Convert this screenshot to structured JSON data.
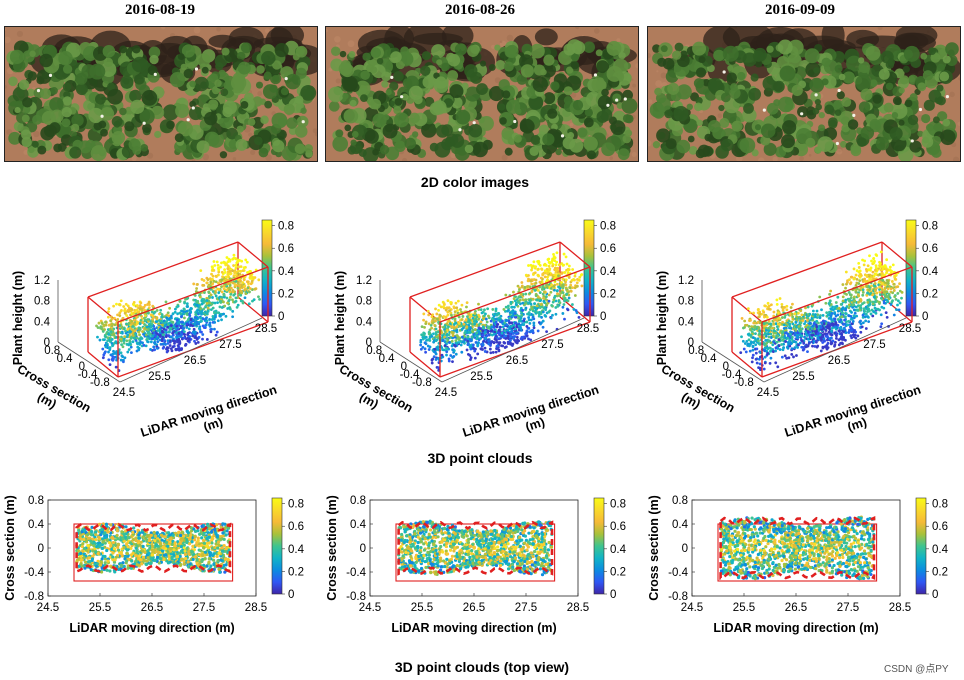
{
  "dates": [
    "2016-08-19",
    "2016-08-26",
    "2016-09-09"
  ],
  "row_titles": {
    "color": "2D color images",
    "clouds3d": "3D point clouds",
    "topview": "3D point clouds (top view)"
  },
  "axes3d": {
    "zlabel": "Plant height (m)",
    "ylabel": "Cross section\n(m)",
    "xlabel": "LiDAR moving direction\n(m)",
    "z_ticks": [
      "1.2",
      "0.8",
      "0.4",
      "0"
    ],
    "y_ticks": [
      "0.8",
      "0.4",
      "0",
      "-0.4",
      "-0.8"
    ],
    "x_ticks": [
      "24.5",
      "25.5",
      "26.5",
      "27.5",
      "28.5"
    ]
  },
  "axes_top": {
    "ylabel": "Cross section (m)",
    "xlabel": "LiDAR moving direction (m)",
    "y_ticks": [
      "0.8",
      "0.4",
      "0",
      "-0.4",
      "-0.8"
    ],
    "x_ticks": [
      "24.5",
      "25.5",
      "26.5",
      "27.5",
      "28.5"
    ]
  },
  "colorbar": {
    "ticks": [
      "0.8",
      "0.6",
      "0.4",
      "0.2",
      "0"
    ],
    "range": [
      0,
      0.85
    ],
    "colors": [
      "#3e26a8",
      "#2f57f4",
      "#0c8ce0",
      "#11b4c6",
      "#3fc48f",
      "#a9c13a",
      "#f6ba38",
      "#f9d92b",
      "#f9fb15"
    ]
  },
  "box_color": "#e02020",
  "watermark": "CSDN @点PY"
}
